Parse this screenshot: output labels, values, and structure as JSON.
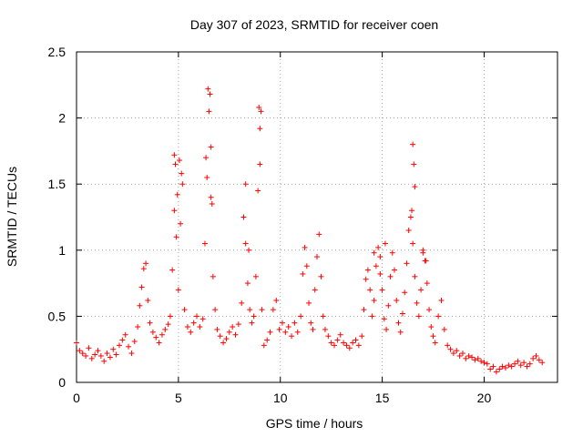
{
  "chart_data": {
    "type": "scatter",
    "title": "Day 307 of 2023, SRMTID for receiver coen",
    "xlabel": "GPS time / hours",
    "ylabel": "SRMTID / TECUs",
    "xlim": [
      0,
      23.6
    ],
    "ylim": [
      0,
      2.5
    ],
    "xticks": [
      0,
      5,
      10,
      15,
      20
    ],
    "yticks": [
      0,
      0.5,
      1,
      1.5,
      2,
      2.5
    ],
    "xtick_labels": [
      "0",
      "5",
      "10",
      "15",
      "20"
    ],
    "ytick_labels": [
      "0",
      "0.5",
      "1",
      "1.5",
      "2",
      "2.5"
    ],
    "grid": true,
    "marker": "+",
    "color": "#ff0000",
    "series": [
      {
        "name": "SRMTID",
        "x": [
          0.0,
          0.15,
          0.3,
          0.45,
          0.6,
          0.75,
          0.9,
          1.05,
          1.2,
          1.35,
          1.5,
          1.65,
          1.8,
          1.95,
          2.1,
          2.25,
          2.4,
          2.55,
          2.7,
          2.85,
          3.0,
          3.1,
          3.2,
          3.3,
          3.4,
          3.5,
          3.6,
          3.75,
          3.9,
          4.05,
          4.2,
          4.35,
          4.5,
          4.6,
          4.7,
          4.8,
          4.9,
          5.0,
          5.1,
          5.2,
          5.3,
          5.45,
          5.6,
          5.75,
          5.9,
          6.05,
          6.2,
          6.3,
          6.4,
          6.5,
          6.6,
          6.7,
          6.8,
          6.9,
          7.05,
          7.2,
          7.35,
          7.5,
          7.65,
          7.8,
          7.95,
          8.1,
          8.2,
          8.3,
          8.4,
          8.5,
          8.6,
          8.7,
          8.8,
          8.9,
          9.0,
          9.1,
          9.2,
          9.35,
          9.5,
          9.65,
          9.8,
          9.95,
          10.1,
          10.25,
          10.4,
          10.55,
          10.7,
          10.85,
          11.0,
          11.1,
          11.2,
          11.3,
          11.4,
          11.5,
          11.6,
          11.7,
          11.8,
          11.9,
          12.0,
          12.1,
          12.2,
          12.35,
          12.5,
          12.65,
          12.8,
          12.95,
          13.1,
          13.25,
          13.4,
          13.55,
          13.7,
          13.85,
          14.0,
          14.1,
          14.2,
          14.3,
          14.4,
          14.5,
          14.6,
          14.7,
          14.8,
          14.9,
          15.0,
          15.1,
          15.2,
          15.3,
          15.4,
          15.5,
          15.6,
          15.7,
          15.8,
          15.9,
          16.0,
          16.1,
          16.2,
          16.3,
          16.4,
          16.5,
          16.6,
          16.7,
          16.8,
          16.9,
          17.0,
          17.1,
          17.2,
          17.3,
          17.4,
          17.5,
          17.6,
          17.75,
          17.9,
          18.05,
          18.2,
          18.35,
          18.5,
          18.65,
          18.8,
          18.95,
          19.1,
          19.25,
          19.4,
          19.55,
          19.7,
          19.85,
          20.0,
          20.15,
          20.3,
          20.45,
          20.6,
          20.75,
          20.9,
          21.05,
          21.2,
          21.35,
          21.5,
          21.65,
          21.8,
          21.95,
          22.1,
          22.25,
          22.4,
          22.55,
          22.7,
          22.85,
          4.8,
          4.85,
          4.95,
          5.05,
          5.15,
          6.35,
          6.45,
          6.55,
          6.6,
          6.65,
          8.3,
          8.45,
          8.95,
          9.0,
          9.05,
          14.6,
          14.9,
          15.15,
          16.45,
          16.5,
          16.55,
          16.6,
          17.0,
          17.15
        ],
        "y": [
          0.3,
          0.24,
          0.22,
          0.2,
          0.26,
          0.18,
          0.21,
          0.24,
          0.2,
          0.16,
          0.22,
          0.19,
          0.25,
          0.21,
          0.28,
          0.32,
          0.36,
          0.27,
          0.22,
          0.31,
          0.42,
          0.58,
          0.72,
          0.86,
          0.9,
          0.62,
          0.45,
          0.38,
          0.34,
          0.3,
          0.36,
          0.4,
          0.44,
          0.5,
          0.85,
          1.3,
          1.1,
          0.7,
          1.2,
          1.5,
          0.55,
          0.42,
          0.38,
          0.45,
          0.5,
          0.42,
          0.48,
          1.05,
          1.55,
          2.05,
          1.4,
          0.8,
          0.55,
          0.4,
          0.35,
          0.3,
          0.33,
          0.38,
          0.42,
          0.36,
          0.44,
          0.6,
          1.25,
          1.05,
          0.75,
          0.55,
          0.45,
          0.5,
          0.8,
          1.45,
          1.65,
          0.55,
          0.28,
          0.32,
          0.38,
          0.55,
          0.62,
          0.4,
          0.45,
          0.38,
          0.42,
          0.35,
          0.45,
          0.38,
          0.5,
          0.82,
          1.02,
          0.88,
          0.6,
          0.45,
          0.4,
          0.7,
          0.95,
          1.12,
          0.8,
          0.5,
          0.4,
          0.35,
          0.3,
          0.28,
          0.32,
          0.36,
          0.3,
          0.28,
          0.26,
          0.3,
          0.32,
          0.28,
          0.35,
          0.55,
          0.78,
          0.85,
          0.7,
          0.5,
          0.62,
          0.88,
          1.02,
          0.95,
          0.7,
          0.48,
          0.4,
          0.58,
          0.8,
          0.98,
          0.85,
          0.62,
          0.45,
          0.38,
          0.52,
          0.68,
          0.9,
          1.15,
          1.25,
          1.05,
          0.8,
          0.6,
          0.5,
          0.7,
          0.98,
          0.92,
          0.75,
          0.55,
          0.42,
          0.35,
          0.3,
          0.5,
          0.62,
          0.4,
          0.28,
          0.25,
          0.22,
          0.24,
          0.2,
          0.22,
          0.18,
          0.2,
          0.19,
          0.17,
          0.18,
          0.16,
          0.15,
          0.14,
          0.1,
          0.12,
          0.08,
          0.1,
          0.12,
          0.11,
          0.13,
          0.12,
          0.14,
          0.16,
          0.13,
          0.15,
          0.12,
          0.14,
          0.18,
          0.2,
          0.17,
          0.15,
          1.72,
          1.65,
          1.42,
          1.68,
          1.58,
          1.7,
          2.22,
          2.18,
          1.78,
          1.35,
          1.5,
          1.0,
          2.08,
          1.92,
          2.05,
          0.98,
          0.82,
          1.05,
          1.3,
          1.8,
          1.65,
          1.48,
          1.0,
          0.92
        ]
      }
    ]
  }
}
